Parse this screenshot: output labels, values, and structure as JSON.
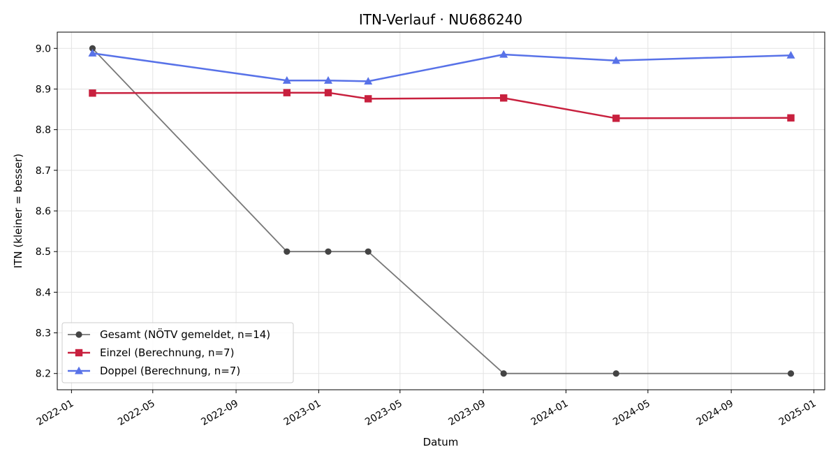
{
  "chart_data": {
    "type": "line",
    "title": "ITN-Verlauf · NU686240",
    "xlabel": "Datum",
    "ylabel": "ITN  (kleiner = besser)",
    "x_axis_type": "date",
    "xlim": [
      "2021-12-11",
      "2025-01-17"
    ],
    "ylim": [
      8.16,
      9.04
    ],
    "x_ticks": [
      "2022-01-01",
      "2022-05-01",
      "2022-09-01",
      "2023-01-01",
      "2023-05-01",
      "2023-09-01",
      "2024-01-01",
      "2024-05-01",
      "2024-09-01",
      "2025-01-01"
    ],
    "x_tick_labels": [
      "2022-01",
      "2022-05",
      "2022-09",
      "2023-01",
      "2023-05",
      "2023-09",
      "2024-01",
      "2024-05",
      "2024-09",
      "2025-01"
    ],
    "y_ticks": [
      8.2,
      8.3,
      8.4,
      8.5,
      8.6,
      8.7,
      8.8,
      8.9,
      9.0
    ],
    "y_tick_labels": [
      "8.2",
      "8.3",
      "8.4",
      "8.5",
      "8.6",
      "8.7",
      "8.8",
      "8.9",
      "9.0"
    ],
    "grid": true,
    "legend_position": "lower-left",
    "series": [
      {
        "name": "Gesamt (NÖTV gemeldet, n=14)",
        "color": "#444444",
        "marker": "circle",
        "line_width": 1.8,
        "x": [
          "2022-02-01",
          "2022-11-15",
          "2023-01-15",
          "2023-03-15",
          "2023-10-01",
          "2024-03-15",
          "2024-11-28"
        ],
        "y": [
          9.0,
          8.5,
          8.5,
          8.5,
          8.2,
          8.2,
          8.2
        ]
      },
      {
        "name": "Einzel (Berechnung, n=7)",
        "color": "#c8203e",
        "marker": "square",
        "line_width": 2.5,
        "x": [
          "2022-02-01",
          "2022-11-15",
          "2023-01-15",
          "2023-03-15",
          "2023-10-01",
          "2024-03-15",
          "2024-11-28"
        ],
        "y": [
          8.89,
          8.891,
          8.891,
          8.876,
          8.878,
          8.828,
          8.829
        ]
      },
      {
        "name": "Doppel (Berechnung, n=7)",
        "color": "#5872e8",
        "marker": "triangle",
        "line_width": 2.5,
        "x": [
          "2022-02-01",
          "2022-11-15",
          "2023-01-15",
          "2023-03-15",
          "2023-10-01",
          "2024-03-15",
          "2024-11-28"
        ],
        "y": [
          8.988,
          8.921,
          8.921,
          8.919,
          8.985,
          8.97,
          8.983
        ]
      }
    ]
  }
}
